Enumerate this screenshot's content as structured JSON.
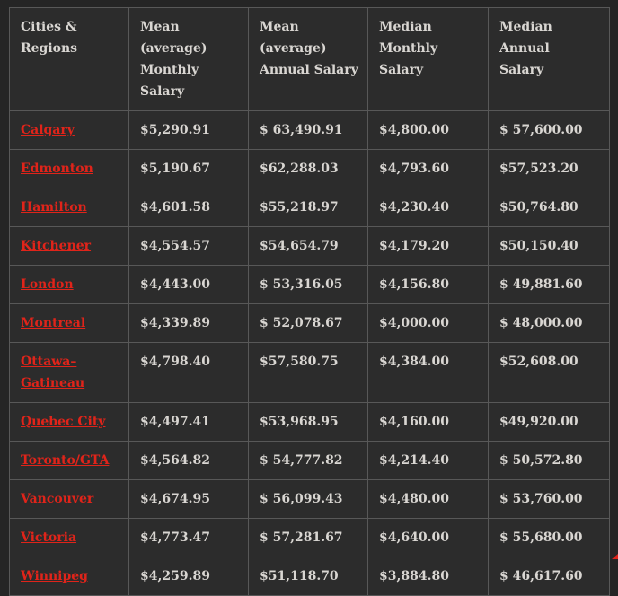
{
  "colors": {
    "page_background": "#252525",
    "cell_background": "#2c2c2c",
    "border": "#585858",
    "text": "#d9d6d2",
    "link_red": "#e0241a",
    "corner_mark": "#e0241a"
  },
  "table": {
    "headers": [
      "Cities &\nRegions",
      "Mean (average)\nMonthly Salary",
      "Mean (average)\nAnnual Salary",
      "Median\nMonthly Salary",
      "Median Annual\nSalary"
    ],
    "rows": [
      {
        "city": "Calgary",
        "values": [
          "$5,290.91",
          "$ 63,490.91",
          "$4,800.00",
          "$ 57,600.00"
        ]
      },
      {
        "city": "Edmonton",
        "values": [
          "$5,190.67",
          "$62,288.03",
          "$4,793.60",
          "$57,523.20"
        ]
      },
      {
        "city": "Hamilton",
        "values": [
          "$4,601.58",
          "$55,218.97",
          "$4,230.40",
          "$50,764.80"
        ]
      },
      {
        "city": "Kitchener",
        "values": [
          "$4,554.57",
          "$54,654.79",
          "$4,179.20",
          "$50,150.40"
        ]
      },
      {
        "city": "London",
        "values": [
          "$4,443.00",
          "$ 53,316.05",
          "$4,156.80",
          "$ 49,881.60"
        ]
      },
      {
        "city": "Montreal",
        "values": [
          "$4,339.89",
          "$ 52,078.67",
          "$4,000.00",
          "$ 48,000.00"
        ]
      },
      {
        "city": "Ottawa–Gatineau",
        "values": [
          "$4,798.40",
          "$57,580.75",
          "$4,384.00",
          "$52,608.00"
        ]
      },
      {
        "city": "Quebec City",
        "values": [
          "$4,497.41",
          "$53,968.95",
          "$4,160.00",
          "$49,920.00"
        ]
      },
      {
        "city": "Toronto/GTA",
        "values": [
          "$4,564.82",
          "$ 54,777.82",
          "$4,214.40",
          "$ 50,572.80"
        ]
      },
      {
        "city": "Vancouver",
        "values": [
          "$4,674.95",
          "$ 56,099.43",
          "$4,480.00",
          "$ 53,760.00"
        ]
      },
      {
        "city": "Victoria",
        "values": [
          "$4,773.47",
          "$ 57,281.67",
          "$4,640.00",
          "$ 55,680.00"
        ]
      },
      {
        "city": "Winnipeg",
        "values": [
          "$4,259.89",
          "$51,118.70",
          "$3,884.80",
          "$ 46,617.60"
        ]
      }
    ]
  }
}
